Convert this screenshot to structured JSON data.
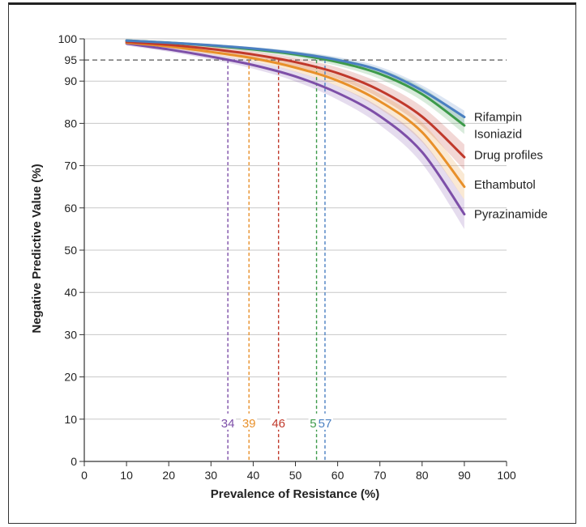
{
  "chart_data": {
    "type": "line",
    "title": "",
    "xlabel": "Prevalence of Resistance (%)",
    "ylabel": "Negative Predictive Value (%)",
    "xlim": [
      0,
      100
    ],
    "ylim": [
      0,
      100
    ],
    "x_ticks": [
      "0",
      "10",
      "20",
      "30",
      "40",
      "50",
      "60",
      "70",
      "80",
      "90",
      "100"
    ],
    "y_ticks": [
      "0",
      "10",
      "20",
      "30",
      "40",
      "50",
      "60",
      "70",
      "80",
      "90",
      "95",
      "100"
    ],
    "grid": "horizontal",
    "reference_line": {
      "y": 95,
      "style": "dashed"
    },
    "x": [
      10,
      20,
      30,
      40,
      50,
      60,
      70,
      80,
      90
    ],
    "series": [
      {
        "name": "Rifampin",
        "color": "#4a7fc1",
        "values": [
          99.6,
          99.1,
          98.5,
          97.7,
          96.6,
          95.0,
          92.5,
          87.8,
          81.5
        ],
        "band": 1.5
      },
      {
        "name": "Isoniazid",
        "color": "#3d9a4a",
        "values": [
          99.6,
          99.1,
          98.4,
          97.5,
          96.3,
          94.5,
          91.7,
          86.9,
          79.5
        ],
        "band": 2.0
      },
      {
        "name": "Drug profiles",
        "color": "#c0392b",
        "values": [
          99.3,
          98.6,
          97.6,
          96.3,
          94.5,
          91.9,
          87.8,
          81.6,
          72.0
        ],
        "band": 3.0
      },
      {
        "name": "Ethambutol",
        "color": "#e8902a",
        "values": [
          99.1,
          98.2,
          96.9,
          95.4,
          93.2,
          90.1,
          85.2,
          77.9,
          65.0
        ],
        "band": 3.0
      },
      {
        "name": "Pyrazinamide",
        "color": "#7d4fa8",
        "values": [
          98.9,
          97.5,
          95.8,
          93.8,
          91.1,
          87.2,
          81.7,
          73.2,
          58.5
        ],
        "band": 3.5
      }
    ],
    "thresholds": [
      {
        "x": 34,
        "label": "34",
        "color": "#7d4fa8"
      },
      {
        "x": 39,
        "label": "39",
        "color": "#e8902a"
      },
      {
        "x": 46,
        "label": "46",
        "color": "#c0392b"
      },
      {
        "x": 55,
        "label": "55",
        "color": "#3d9a4a"
      },
      {
        "x": 57,
        "label": "57",
        "color": "#4a7fc1"
      }
    ]
  }
}
